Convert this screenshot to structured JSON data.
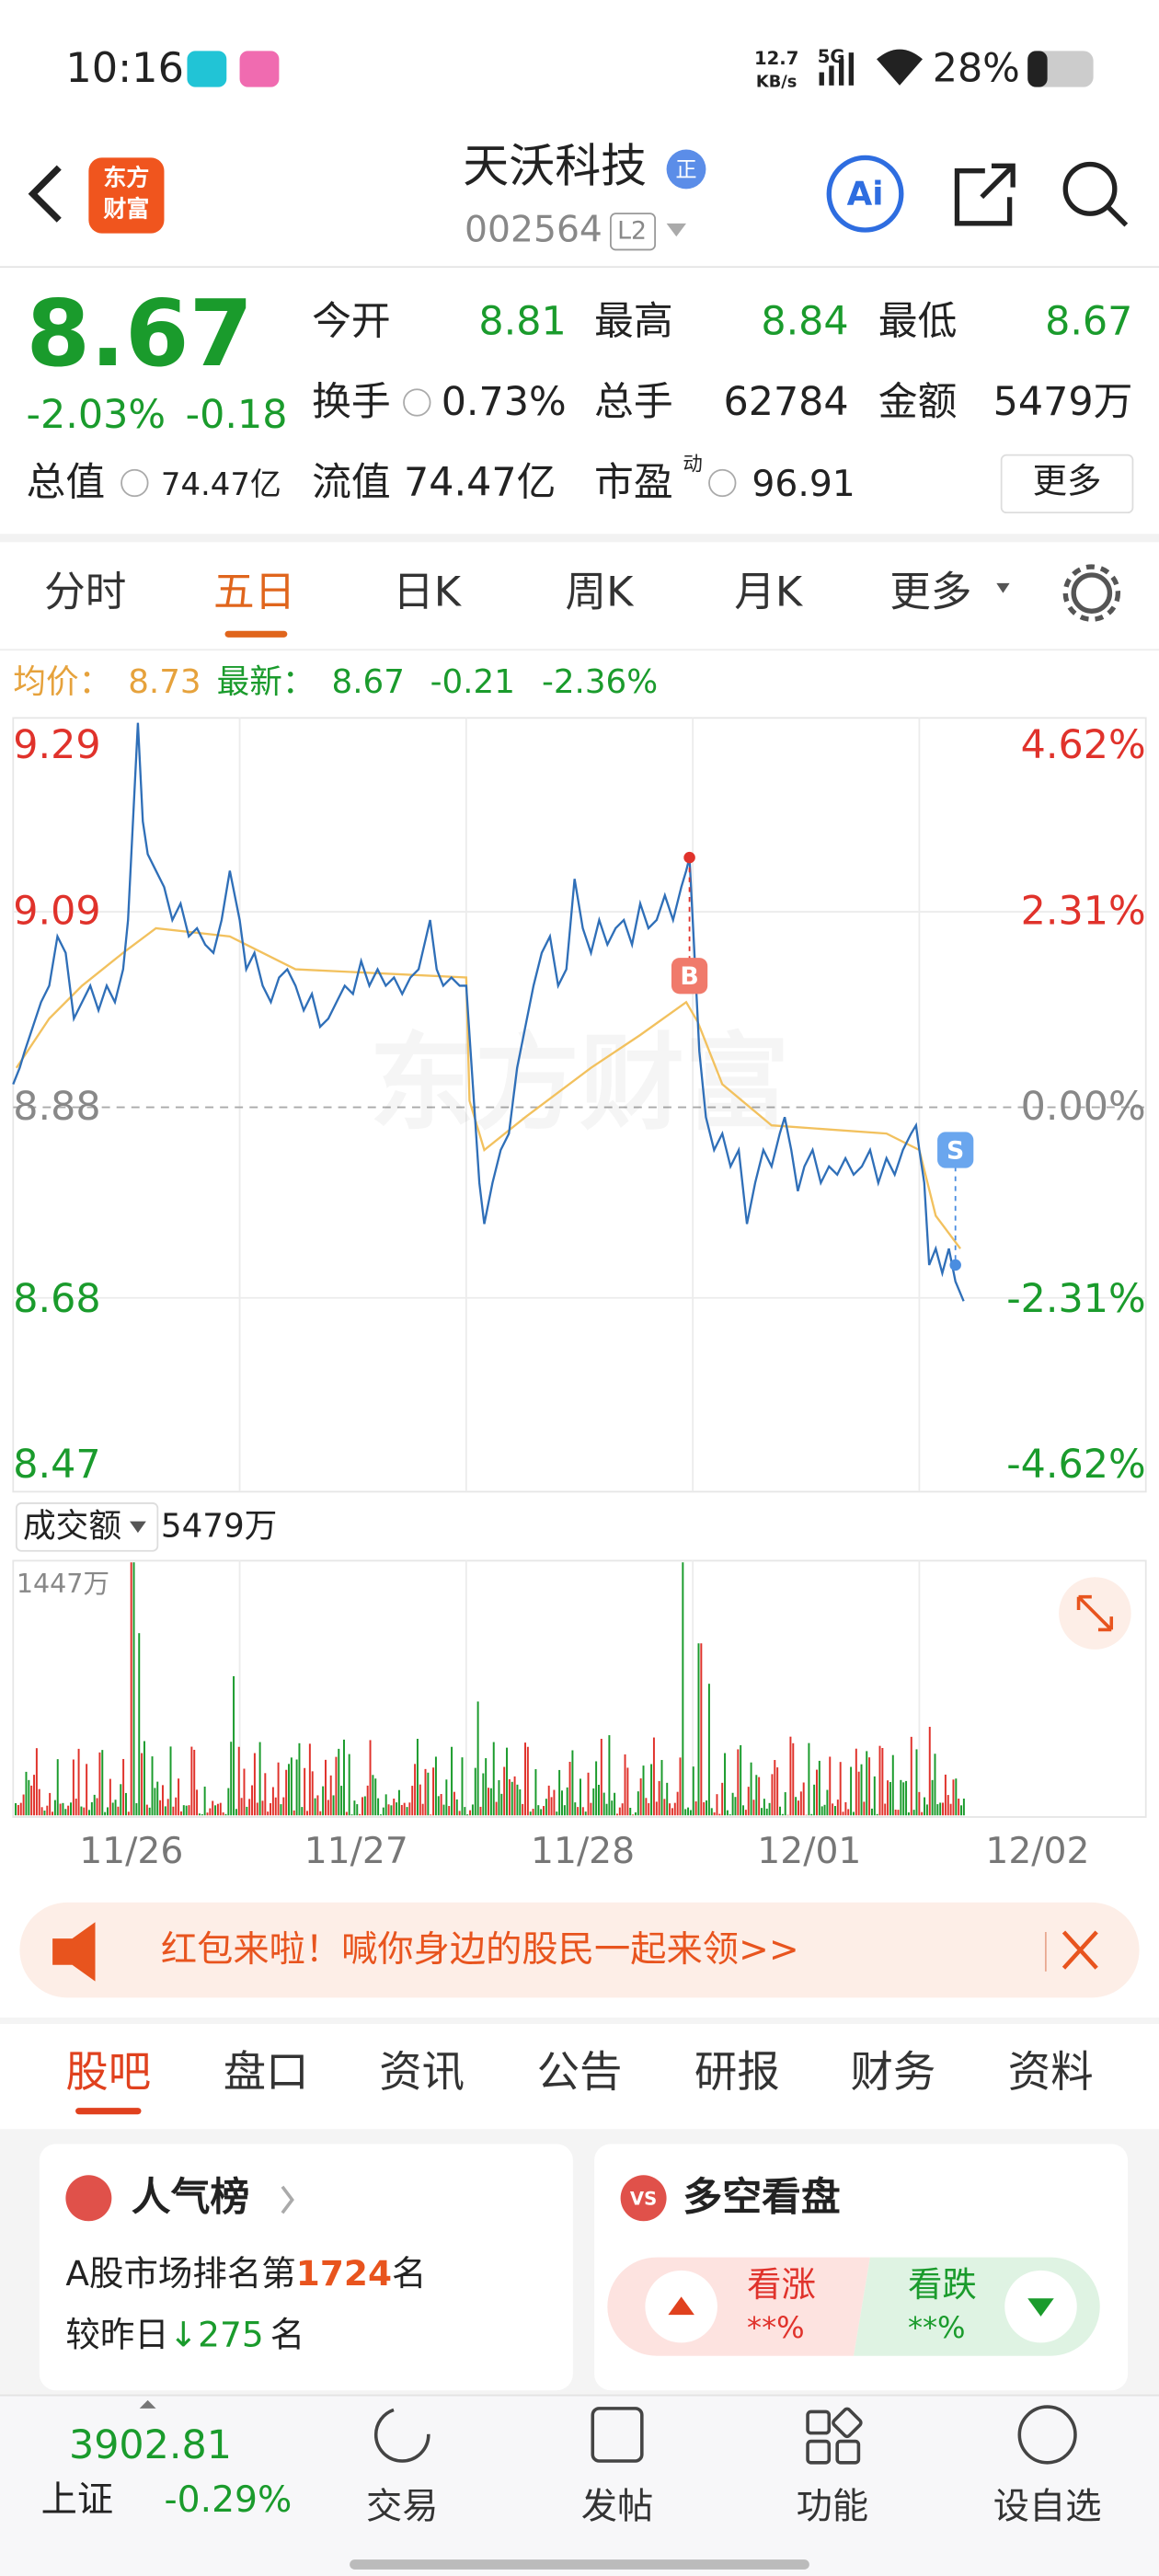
{
  "status": {
    "time": "10:16",
    "speed": "12.7",
    "speed_unit": "KB/s",
    "net": "5G",
    "battery": "28%"
  },
  "header": {
    "logo_top": "东方",
    "logo_bottom": "财富",
    "title": "天沃科技",
    "badge": "正",
    "code": "002564",
    "level": "L2",
    "ai": "Ai"
  },
  "quote": {
    "price": "8.67",
    "change_pct": "-2.03%",
    "change": "-0.18",
    "fields": [
      {
        "label": "今开",
        "value": "8.81"
      },
      {
        "label": "最高",
        "value": "8.84"
      },
      {
        "label": "最低",
        "value": "8.67"
      },
      {
        "label": "换手",
        "value": "0.73%"
      },
      {
        "label": "总手",
        "value": "62784"
      },
      {
        "label": "金额",
        "value": "5479万"
      }
    ],
    "total_cap_label": "总值",
    "total_cap": "74.47亿",
    "float_cap_label": "流值",
    "float_cap": "74.47亿",
    "pe_label": "市盈",
    "pe_sup": "动",
    "pe": "96.91",
    "more": "更多"
  },
  "chart_tabs": [
    "分时",
    "五日",
    "日K",
    "周K",
    "月K",
    "更多"
  ],
  "info": {
    "avg_label": "均价：",
    "avg": "8.73",
    "last_label": "最新：",
    "last": "8.67",
    "change": "-0.21",
    "change_pct": "-2.36%"
  },
  "chart": {
    "watermark": "东方财富",
    "price_labels": [
      "9.29",
      "9.09",
      "8.88",
      "8.68",
      "8.47"
    ],
    "pct_labels": [
      "4.62%",
      "2.31%",
      "0.00%",
      "-2.31%",
      "-4.62%"
    ],
    "buy": "B",
    "sell": "S",
    "volume_selector": "成交额",
    "volume_total": "5479万",
    "volume_max": "1447万",
    "dates": [
      "11/26",
      "11/27",
      "11/28",
      "12/01",
      "12/02"
    ]
  },
  "banner": "红包来啦！喊你身边的股民一起来领>>",
  "section_tabs": [
    "股吧",
    "盘口",
    "资讯",
    "公告",
    "研报",
    "财务",
    "资料"
  ],
  "popularity": {
    "title": "人气榜",
    "rank_prefix": "A股市场排名第",
    "rank": "1724",
    "rank_suffix": "名",
    "change_prefix": "较昨日",
    "arrow": "↓",
    "change": "275",
    "change_suffix": "名"
  },
  "sentiment": {
    "icon": "VS",
    "title": "多空看盘",
    "up": "看涨",
    "up_value": "**%",
    "down": "看跌",
    "down_value": "**%"
  },
  "bottom": {
    "index_value": "3902.81",
    "index_name": "上证",
    "index_change": "-0.29%",
    "buttons": [
      "交易",
      "发帖",
      "功能",
      "设自选"
    ]
  }
}
